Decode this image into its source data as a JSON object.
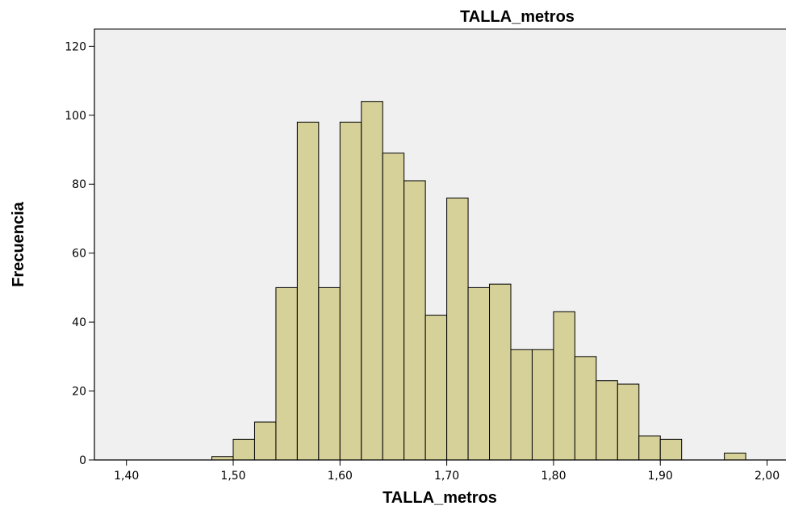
{
  "chart_data": {
    "type": "bar",
    "title": "TALLA_metros",
    "xlabel": "TALLA_metros",
    "ylabel": "Frecuencia",
    "bin_width": 0.02,
    "bin_starts": [
      1.48,
      1.5,
      1.52,
      1.54,
      1.56,
      1.58,
      1.6,
      1.62,
      1.64,
      1.66,
      1.68,
      1.7,
      1.72,
      1.74,
      1.76,
      1.78,
      1.8,
      1.82,
      1.84,
      1.86,
      1.88,
      1.9,
      1.92,
      1.94,
      1.96
    ],
    "values": [
      1,
      6,
      11,
      50,
      98,
      50,
      98,
      104,
      89,
      81,
      42,
      76,
      50,
      51,
      32,
      32,
      43,
      30,
      23,
      22,
      7,
      6,
      0,
      0,
      2
    ],
    "xlim": [
      1.37,
      2.02
    ],
    "ylim": [
      0,
      125
    ],
    "x_ticks": [
      1.4,
      1.5,
      1.6,
      1.7,
      1.8,
      1.9,
      2.0
    ],
    "x_tick_labels": [
      "1,40",
      "1,50",
      "1,60",
      "1,70",
      "1,80",
      "1,90",
      "2,00"
    ],
    "y_ticks": [
      0,
      20,
      40,
      60,
      80,
      100,
      120
    ],
    "y_tick_labels": [
      "0",
      "20",
      "40",
      "60",
      "80",
      "100",
      "120"
    ],
    "grid": false,
    "colors": {
      "bar_fill": "#d6d099",
      "plot_background": "#f0f0f0"
    }
  }
}
